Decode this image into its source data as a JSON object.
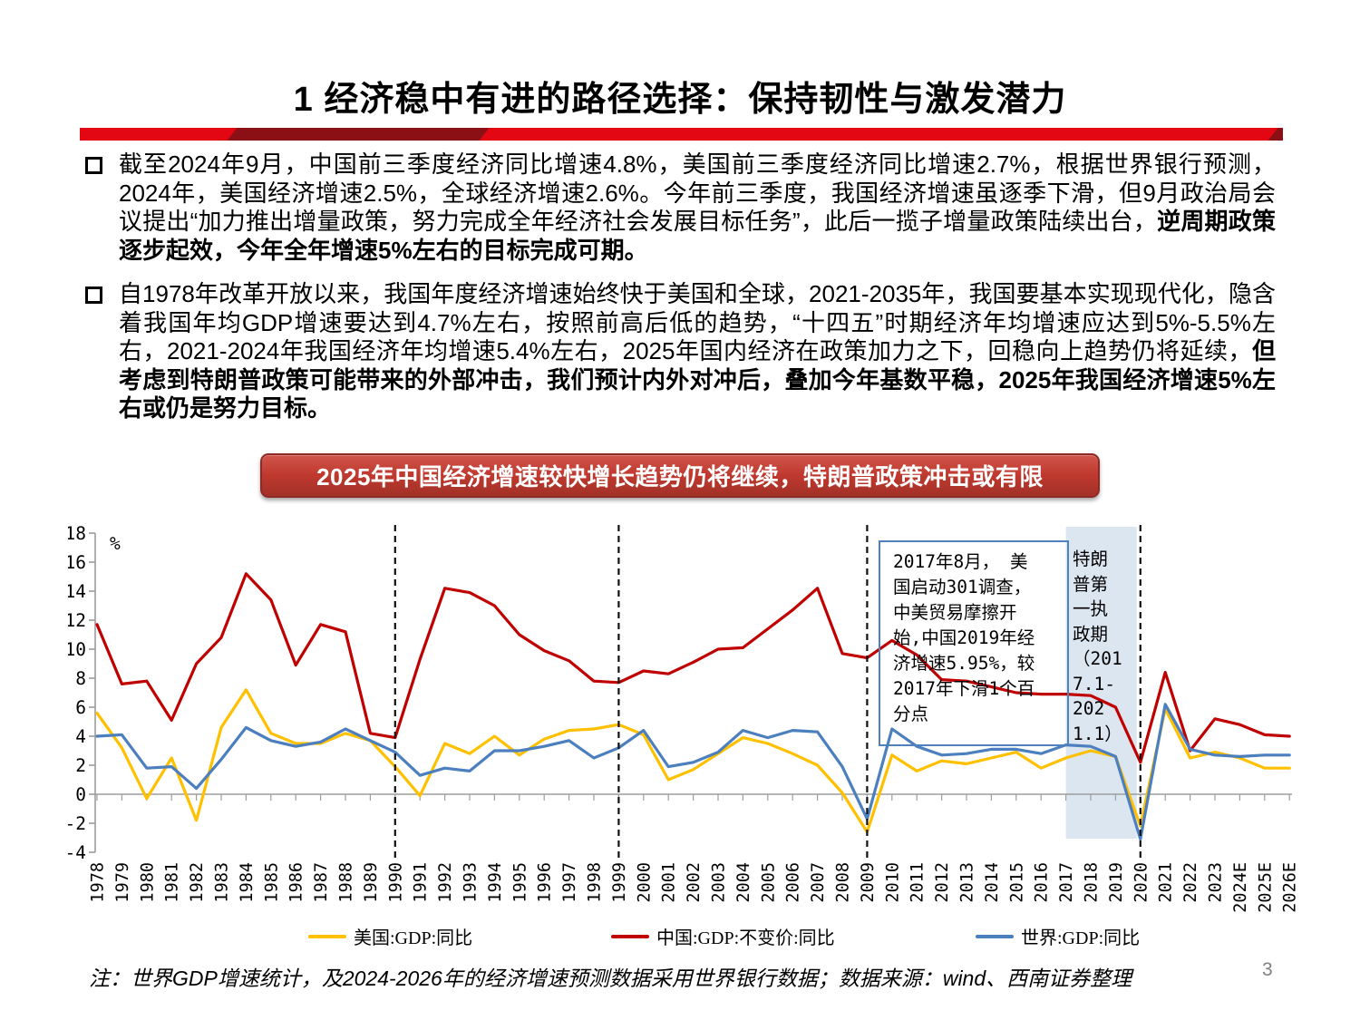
{
  "slide": {
    "title": "1 经济稳中有进的路径选择：保持韧性与激发潜力",
    "page_number": "3",
    "bullets": [
      {
        "normal": "截至2024年9月，中国前三季度经济同比增速4.8%，美国前三季度经济同比增速2.7%，根据世界银行预测，2024年，美国经济增速2.5%，全球经济增速2.6%。今年前三季度，我国经济增速虽逐季下滑，但9月政治局会议提出“加力推出增量政策，努力完成全年经济社会发展目标任务”，此后一揽子增量政策陆续出台，",
        "bold": "逆周期政策逐步起效，今年全年增速5%左右的目标完成可期。"
      },
      {
        "normal": "自1978年改革开放以来，我国年度经济增速始终快于美国和全球，2021-2035年，我国要基本实现现代化，隐含着我国年均GDP增速要达到4.7%左右，按照前高后低的趋势，“十四五”时期经济年均增速应达到5%-5.5%左右，2021-2024年我国经济年均增速5.4%左右，2025年国内经济在政策加力之下，回稳向上趋势仍将延续，",
        "bold": "但考虑到特朗普政策可能带来的外部冲击，我们预计内外对冲后，叠加今年基数平稳，2025年我国经济增速5%左右或仍是努力目标。"
      }
    ],
    "banner": "2025年中国经济增速较快增长趋势仍将继续，特朗普政策冲击或有限",
    "footnote": "注：世界GDP增速统计，及2024-2026年的经济增速预测数据采用世界银行数据；数据来源：wind、西南证券整理",
    "colors": {
      "accent_red": "#E30613",
      "dark_red": "#8A1016",
      "banner_red": "#C0392F"
    }
  },
  "chart_data": {
    "type": "line",
    "unit_label": "%",
    "ylim": [
      -4,
      18
    ],
    "ytick_step": 2,
    "grid": "zero-line-only",
    "legend_position": "bottom",
    "categories": [
      "1978",
      "1979",
      "1980",
      "1981",
      "1982",
      "1983",
      "1984",
      "1985",
      "1986",
      "1987",
      "1988",
      "1989",
      "1990",
      "1991",
      "1992",
      "1993",
      "1994",
      "1995",
      "1996",
      "1997",
      "1998",
      "1999",
      "2000",
      "2001",
      "2002",
      "2003",
      "2004",
      "2005",
      "2006",
      "2007",
      "2008",
      "2009",
      "2010",
      "2011",
      "2012",
      "2013",
      "2014",
      "2015",
      "2016",
      "2017",
      "2018",
      "2019",
      "2020",
      "2021",
      "2022",
      "2023",
      "2024E",
      "2025E",
      "2026E"
    ],
    "series": [
      {
        "name": "美国:GDP:同比",
        "color": "#FFC000",
        "values": [
          5.6,
          3.2,
          -0.3,
          2.5,
          -1.8,
          4.6,
          7.2,
          4.2,
          3.5,
          3.5,
          4.2,
          3.7,
          1.9,
          -0.1,
          3.5,
          2.8,
          4.0,
          2.7,
          3.8,
          4.4,
          4.5,
          4.8,
          4.1,
          1.0,
          1.7,
          2.8,
          3.9,
          3.5,
          2.8,
          2.0,
          0.1,
          -2.6,
          2.7,
          1.6,
          2.3,
          2.1,
          2.5,
          2.9,
          1.8,
          2.5,
          3.0,
          2.6,
          -2.2,
          5.9,
          2.5,
          2.9,
          2.5,
          1.8,
          1.8
        ]
      },
      {
        "name": "中国:GDP:不变价:同比",
        "color": "#C00000",
        "values": [
          11.7,
          7.6,
          7.8,
          5.1,
          9.0,
          10.8,
          15.2,
          13.4,
          8.9,
          11.7,
          11.2,
          4.2,
          3.9,
          9.3,
          14.2,
          13.9,
          13.0,
          11.0,
          9.9,
          9.2,
          7.8,
          7.7,
          8.5,
          8.3,
          9.1,
          10.0,
          10.1,
          11.4,
          12.7,
          14.2,
          9.7,
          9.4,
          10.6,
          9.6,
          7.9,
          7.8,
          7.4,
          7.0,
          6.9,
          6.9,
          6.8,
          6.0,
          2.2,
          8.4,
          3.0,
          5.2,
          4.8,
          4.1,
          4.0
        ]
      },
      {
        "name": "世界:GDP:同比",
        "color": "#4C7FBE",
        "values": [
          4.0,
          4.1,
          1.8,
          1.9,
          0.4,
          2.4,
          4.6,
          3.7,
          3.3,
          3.6,
          4.5,
          3.7,
          2.9,
          1.3,
          1.8,
          1.6,
          3.0,
          3.0,
          3.3,
          3.7,
          2.5,
          3.2,
          4.4,
          1.9,
          2.2,
          2.9,
          4.4,
          3.9,
          4.4,
          4.3,
          1.9,
          -1.7,
          4.5,
          3.3,
          2.7,
          2.8,
          3.1,
          3.1,
          2.8,
          3.4,
          3.3,
          2.6,
          -3.1,
          6.2,
          3.1,
          2.7,
          2.6,
          2.7,
          2.7
        ]
      }
    ],
    "dashed_marker_years": [
      "1990",
      "1999",
      "2009",
      "2020"
    ],
    "highlight": {
      "from_year": "2017",
      "to_year": "2020",
      "color": "#DCE6F1",
      "label": "特朗普第一执政期（2017.1-2021.1）"
    },
    "annotation": "2017年8月， 美国启动301调查，中美贸易摩擦开始,中国2019年经济增速5.95%，较2017年下滑1个百分点"
  }
}
